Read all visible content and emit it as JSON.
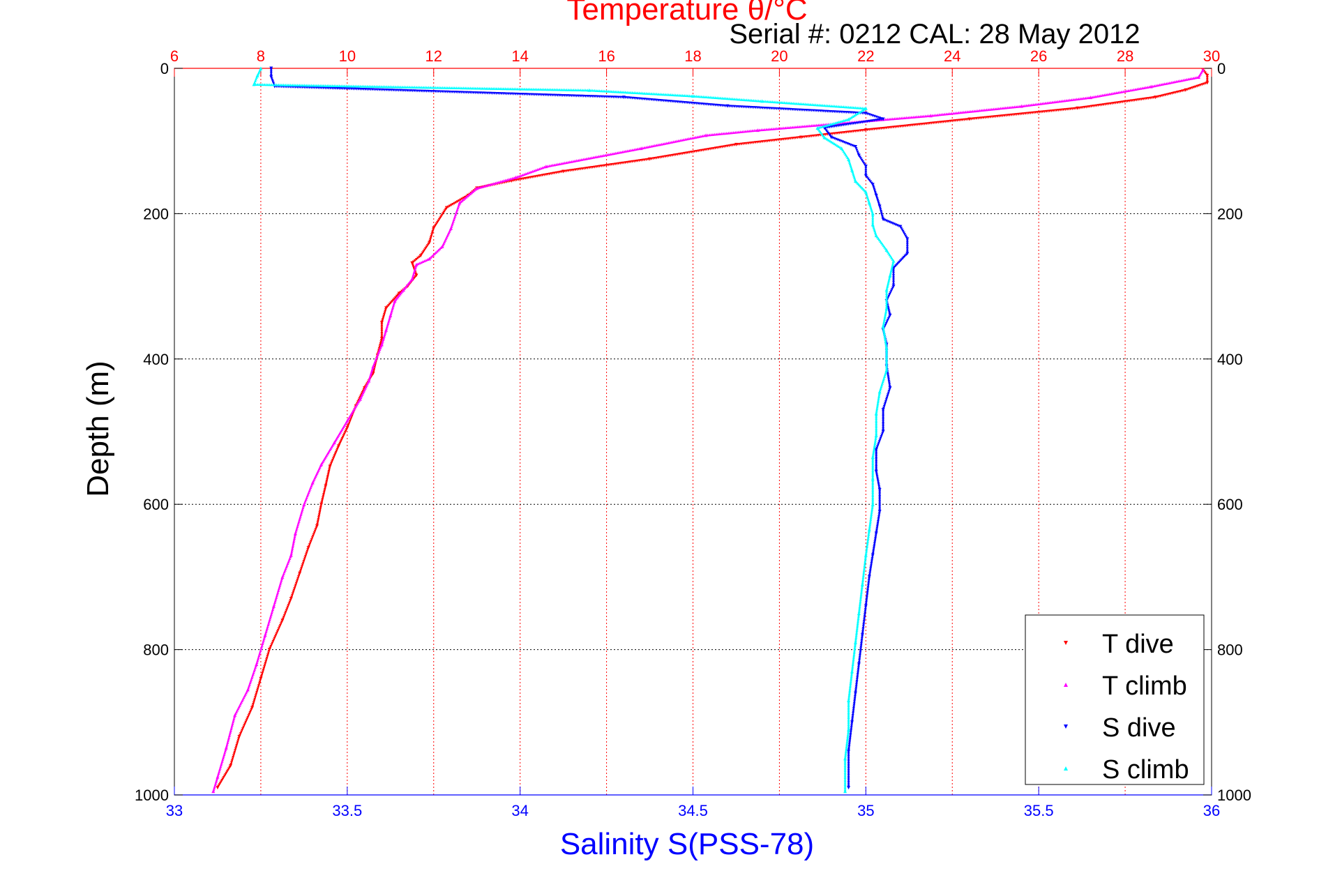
{
  "chart_data": {
    "type": "scatter",
    "title": "Temperature θ/°C",
    "subtitle": "Serial #: 0212  CAL: 28 May 2012",
    "ylabel": "Depth (m)",
    "xlabel_bottom": "Salinity S(PSS-78)",
    "xlabel_top": "Temperature θ/°C",
    "ylim": [
      0,
      1000
    ],
    "y_reversed": true,
    "yticks": [
      0,
      200,
      400,
      600,
      800,
      1000
    ],
    "ytick_labels": [
      "0",
      "200",
      "400",
      "600",
      "800",
      "1000"
    ],
    "salinity_axis": {
      "range": [
        33,
        36
      ],
      "ticks": [
        33,
        33.5,
        34,
        34.5,
        35,
        35.5,
        36
      ],
      "tick_labels": [
        "33",
        "33.5",
        "34",
        "34.5",
        "35",
        "35.5",
        "36"
      ]
    },
    "temperature_axis": {
      "range": [
        6,
        30
      ],
      "ticks": [
        6,
        8,
        10,
        12,
        14,
        16,
        18,
        20,
        22,
        24,
        26,
        28,
        30
      ],
      "tick_labels": [
        "6",
        "8",
        "10",
        "12",
        "14",
        "16",
        "18",
        "20",
        "22",
        "24",
        "26",
        "28",
        "30"
      ]
    },
    "legend": {
      "placement": "bottom-right",
      "entries": [
        "T dive",
        "T climb",
        "S dive",
        "S climb"
      ]
    },
    "series": [
      {
        "name": "T dive",
        "axis": "temperature",
        "color": "#ff0000",
        "marker": "triangle-down",
        "points": [
          [
            29.8,
            2
          ],
          [
            29.9,
            10
          ],
          [
            29.9,
            20
          ],
          [
            29.4,
            30
          ],
          [
            28.7,
            40
          ],
          [
            26.9,
            55
          ],
          [
            24.4,
            70
          ],
          [
            22.0,
            85
          ],
          [
            20.5,
            95
          ],
          [
            19.0,
            105
          ],
          [
            17.0,
            125
          ],
          [
            15.0,
            142
          ],
          [
            13.8,
            155
          ],
          [
            13.0,
            165
          ],
          [
            12.8,
            175
          ],
          [
            12.3,
            192
          ],
          [
            12.0,
            220
          ],
          [
            11.9,
            240
          ],
          [
            11.7,
            258
          ],
          [
            11.5,
            268
          ],
          [
            11.6,
            285
          ],
          [
            11.4,
            300
          ],
          [
            11.2,
            310
          ],
          [
            10.9,
            330
          ],
          [
            10.8,
            350
          ],
          [
            10.8,
            372
          ],
          [
            10.7,
            395
          ],
          [
            10.6,
            420
          ],
          [
            10.4,
            440
          ],
          [
            10.2,
            465
          ],
          [
            10.0,
            495
          ],
          [
            9.8,
            520
          ],
          [
            9.6,
            548
          ],
          [
            9.5,
            575
          ],
          [
            9.4,
            600
          ],
          [
            9.3,
            630
          ],
          [
            9.1,
            660
          ],
          [
            8.9,
            695
          ],
          [
            8.7,
            730
          ],
          [
            8.5,
            760
          ],
          [
            8.2,
            800
          ],
          [
            8.0,
            840
          ],
          [
            7.8,
            880
          ],
          [
            7.5,
            920
          ],
          [
            7.3,
            960
          ],
          [
            7.0,
            990
          ]
        ]
      },
      {
        "name": "T climb",
        "axis": "temperature",
        "color": "#ff00ff",
        "marker": "triangle-up",
        "points": [
          [
            29.8,
            2
          ],
          [
            29.7,
            12
          ],
          [
            28.6,
            25
          ],
          [
            27.2,
            40
          ],
          [
            25.6,
            52
          ],
          [
            23.5,
            65
          ],
          [
            21.5,
            75
          ],
          [
            19.5,
            85
          ],
          [
            18.3,
            92
          ],
          [
            16.8,
            110
          ],
          [
            14.6,
            135
          ],
          [
            13.9,
            150
          ],
          [
            13.0,
            165
          ],
          [
            12.6,
            185
          ],
          [
            12.4,
            220
          ],
          [
            12.2,
            245
          ],
          [
            11.9,
            262
          ],
          [
            11.6,
            270
          ],
          [
            11.5,
            290
          ],
          [
            11.3,
            305
          ],
          [
            11.1,
            320
          ],
          [
            11.0,
            340
          ],
          [
            10.9,
            360
          ],
          [
            10.8,
            380
          ],
          [
            10.6,
            410
          ],
          [
            10.5,
            430
          ],
          [
            10.3,
            455
          ],
          [
            10.0,
            485
          ],
          [
            9.7,
            515
          ],
          [
            9.4,
            545
          ],
          [
            9.2,
            570
          ],
          [
            9.0,
            600
          ],
          [
            8.8,
            640
          ],
          [
            8.7,
            670
          ],
          [
            8.5,
            700
          ],
          [
            8.3,
            740
          ],
          [
            8.1,
            780
          ],
          [
            7.9,
            820
          ],
          [
            7.7,
            855
          ],
          [
            7.4,
            890
          ],
          [
            7.2,
            935
          ],
          [
            7.0,
            975
          ],
          [
            6.9,
            995
          ]
        ]
      },
      {
        "name": "S dive",
        "axis": "salinity",
        "color": "#0000ff",
        "marker": "triangle-down",
        "points": [
          [
            33.28,
            0
          ],
          [
            33.28,
            12
          ],
          [
            33.29,
            25
          ],
          [
            34.3,
            40
          ],
          [
            34.6,
            52
          ],
          [
            35.0,
            62
          ],
          [
            35.05,
            70
          ],
          [
            34.88,
            82
          ],
          [
            34.9,
            95
          ],
          [
            34.97,
            108
          ],
          [
            34.98,
            120
          ],
          [
            35.0,
            135
          ],
          [
            35.0,
            148
          ],
          [
            35.02,
            160
          ],
          [
            35.03,
            175
          ],
          [
            35.04,
            190
          ],
          [
            35.05,
            208
          ],
          [
            35.1,
            218
          ],
          [
            35.12,
            235
          ],
          [
            35.12,
            255
          ],
          [
            35.08,
            275
          ],
          [
            35.08,
            300
          ],
          [
            35.06,
            320
          ],
          [
            35.07,
            340
          ],
          [
            35.05,
            360
          ],
          [
            35.06,
            380
          ],
          [
            35.06,
            410
          ],
          [
            35.07,
            440
          ],
          [
            35.05,
            470
          ],
          [
            35.05,
            500
          ],
          [
            35.03,
            525
          ],
          [
            35.03,
            555
          ],
          [
            35.04,
            580
          ],
          [
            35.04,
            610
          ],
          [
            35.03,
            640
          ],
          [
            35.02,
            670
          ],
          [
            35.01,
            700
          ],
          [
            35.0,
            740
          ],
          [
            34.99,
            780
          ],
          [
            34.98,
            820
          ],
          [
            34.97,
            860
          ],
          [
            34.96,
            900
          ],
          [
            34.95,
            940
          ],
          [
            34.95,
            990
          ]
        ]
      },
      {
        "name": "S climb",
        "axis": "salinity",
        "color": "#00ffff",
        "marker": "triangle-up",
        "points": [
          [
            33.25,
            0
          ],
          [
            33.24,
            10
          ],
          [
            33.23,
            22
          ],
          [
            34.2,
            30
          ],
          [
            34.5,
            38
          ],
          [
            34.7,
            45
          ],
          [
            35.0,
            55
          ],
          [
            34.95,
            70
          ],
          [
            34.86,
            82
          ],
          [
            34.88,
            95
          ],
          [
            34.93,
            110
          ],
          [
            34.95,
            125
          ],
          [
            34.96,
            140
          ],
          [
            34.97,
            155
          ],
          [
            35.0,
            170
          ],
          [
            35.01,
            185
          ],
          [
            35.02,
            200
          ],
          [
            35.02,
            215
          ],
          [
            35.03,
            230
          ],
          [
            35.06,
            250
          ],
          [
            35.08,
            265
          ],
          [
            35.07,
            285
          ],
          [
            35.06,
            305
          ],
          [
            35.06,
            330
          ],
          [
            35.05,
            355
          ],
          [
            35.06,
            385
          ],
          [
            35.06,
            415
          ],
          [
            35.04,
            445
          ],
          [
            35.03,
            475
          ],
          [
            35.03,
            505
          ],
          [
            35.02,
            535
          ],
          [
            35.02,
            565
          ],
          [
            35.02,
            600
          ],
          [
            35.01,
            635
          ],
          [
            35.0,
            670
          ],
          [
            34.99,
            710
          ],
          [
            34.98,
            750
          ],
          [
            34.97,
            790
          ],
          [
            34.96,
            830
          ],
          [
            34.95,
            870
          ],
          [
            34.95,
            910
          ],
          [
            34.94,
            950
          ],
          [
            34.94,
            995
          ]
        ]
      }
    ]
  }
}
